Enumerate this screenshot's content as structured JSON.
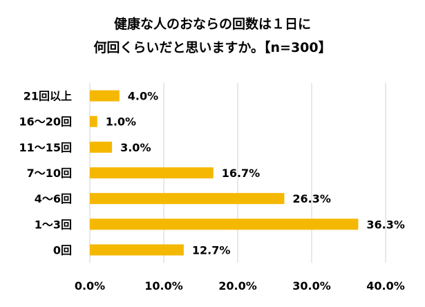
{
  "chart_data": {
    "type": "bar",
    "orientation": "horizontal",
    "title_lines": [
      "健康な人のおならの回数は１日に",
      "何回くらいだと思いますか。【n=300】"
    ],
    "categories": [
      "21回以上",
      "16～20回",
      "11～15回",
      "7～10回",
      "4～6回",
      "1～3回",
      "0回"
    ],
    "values": [
      4.0,
      1.0,
      3.0,
      16.7,
      26.3,
      36.3,
      12.7
    ],
    "data_labels": [
      "4.0%",
      "1.0%",
      "3.0%",
      "16.7%",
      "26.3%",
      "36.3%",
      "12.7%"
    ],
    "xlim": [
      0,
      40
    ],
    "xticks": [
      0,
      10,
      20,
      30,
      40
    ],
    "xtick_labels": [
      "0.0%",
      "10.0%",
      "20.0%",
      "30.0%",
      "40.0%"
    ],
    "grid": "vertical",
    "legend": "none",
    "bar_color": "#F5B800",
    "grid_color": "#D0D0D0"
  }
}
